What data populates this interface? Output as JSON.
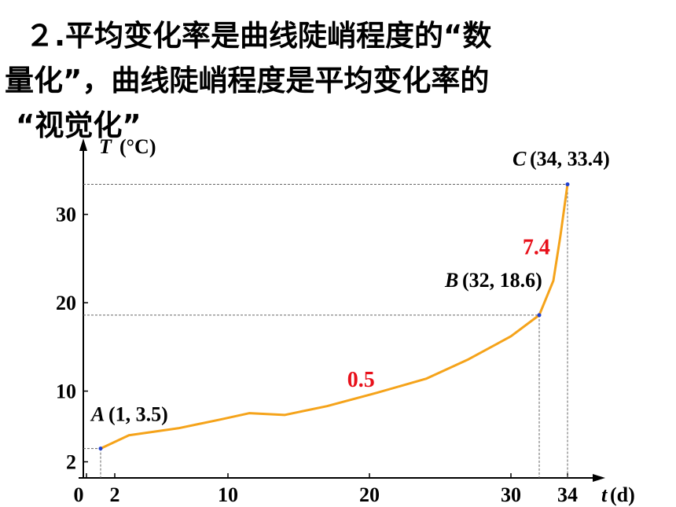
{
  "chart_data": {
    "type": "line",
    "title_lines": [
      "２.平均变化率是曲线陡峭程度的“数",
      "量化”，曲线陡峭程度是平均变化率的",
      "“视觉化”"
    ],
    "y_label_var": "T",
    "y_label_unit": "(°C)",
    "x_label_var": "t",
    "x_label_unit": "(d)",
    "xlim": [
      0,
      36
    ],
    "ylim": [
      0,
      37
    ],
    "xticks": [
      0,
      2,
      10,
      20,
      30,
      34
    ],
    "yticks": [
      2,
      10,
      20,
      30
    ],
    "series": [
      {
        "color": "#f5a31a",
        "x": [
          1,
          3,
          6.5,
          9.5,
          11.5,
          14,
          17,
          20.5,
          24,
          27,
          30,
          32,
          33,
          33.5,
          34
        ],
        "values": [
          3.5,
          5.0,
          5.8,
          6.8,
          7.5,
          7.3,
          8.3,
          9.8,
          11.4,
          13.6,
          16.2,
          18.6,
          22.5,
          27.6,
          33.4
        ]
      }
    ],
    "points": [
      {
        "name": "A",
        "label": "(1, 3.5)",
        "x": 1,
        "y": 3.5
      },
      {
        "name": "B",
        "label": "(32, 18.6)",
        "x": 32,
        "y": 18.6
      },
      {
        "name": "C",
        "label": "(34, 33.4)",
        "x": 34,
        "y": 33.4
      }
    ],
    "point_color": "#1f3fd0",
    "annotations": [
      {
        "text": "0.5",
        "x": 19.4,
        "y": 10.5
      },
      {
        "text": "7.4",
        "x": 31.8,
        "y": 25.5
      }
    ],
    "annotation_color": "#e8101a"
  }
}
